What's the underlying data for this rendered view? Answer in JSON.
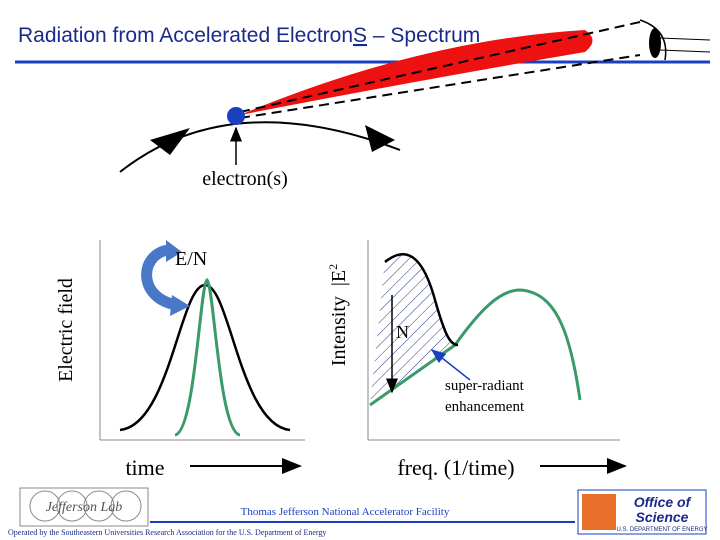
{
  "header": {
    "title": {
      "main": "Radiation from Accelerated Electron",
      "emphasis": "S",
      "rest": " – Spectrum"
    }
  },
  "diagram": {
    "electron_label": "electron(s)",
    "left_plot": {
      "y_label": "Electric field",
      "x_label": "time",
      "annotation": "E/N"
    },
    "right_plot": {
      "y_label": "Intensity",
      "y_label_quantity": "E",
      "y_label_power": "2",
      "annotation": "N",
      "note_line1": "super-radiant",
      "note_line2": "enhancement",
      "x_label": "freq. (1/time)"
    }
  },
  "footer": {
    "facility": "Thomas Jefferson National Accelerator Facility",
    "operator": "Operated by the Southeastern Universities Research Association for the U.S. Department of Energy",
    "left_logo": "Jefferson Lab",
    "right_logo_line1": "Office of",
    "right_logo_line2": "Science",
    "right_logo_line3": "U.S. DEPARTMENT OF ENERGY"
  }
}
